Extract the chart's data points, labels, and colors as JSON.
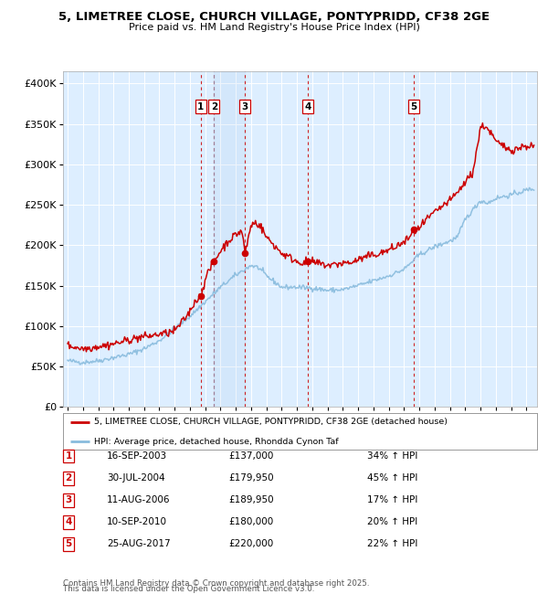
{
  "title_line1": "5, LIMETREE CLOSE, CHURCH VILLAGE, PONTYPRIDD, CF38 2GE",
  "title_line2": "Price paid vs. HM Land Registry's House Price Index (HPI)",
  "ylabel_values": [
    0,
    50000,
    100000,
    150000,
    200000,
    250000,
    300000,
    350000,
    400000
  ],
  "xlim_start": 1994.7,
  "xlim_end": 2025.7,
  "ylim": [
    0,
    415000
  ],
  "background_color": "#ffffff",
  "plot_bg_color": "#ddeeff",
  "grid_color": "#ffffff",
  "hpi_color": "#88bbdd",
  "price_color": "#cc0000",
  "transactions": [
    {
      "num": 1,
      "date_x": 2003.71,
      "price": 137000,
      "label": "16-SEP-2003",
      "pct": "34%",
      "direction": "↑"
    },
    {
      "num": 2,
      "date_x": 2004.58,
      "price": 179950,
      "label": "30-JUL-2004",
      "pct": "45%",
      "direction": "↑"
    },
    {
      "num": 3,
      "date_x": 2006.61,
      "price": 189950,
      "label": "11-AUG-2006",
      "pct": "17%",
      "direction": "↑"
    },
    {
      "num": 4,
      "date_x": 2010.69,
      "price": 180000,
      "label": "10-SEP-2010",
      "pct": "20%",
      "direction": "↑"
    },
    {
      "num": 5,
      "date_x": 2017.65,
      "price": 220000,
      "label": "25-AUG-2017",
      "pct": "22%",
      "direction": "↑"
    }
  ],
  "footnote_line1": "Contains HM Land Registry data © Crown copyright and database right 2025.",
  "footnote_line2": "This data is licensed under the Open Government Licence v3.0.",
  "legend_price_label": "5, LIMETREE CLOSE, CHURCH VILLAGE, PONTYPRIDD, CF38 2GE (detached house)",
  "legend_hpi_label": "HPI: Average price, detached house, Rhondda Cynon Taf"
}
